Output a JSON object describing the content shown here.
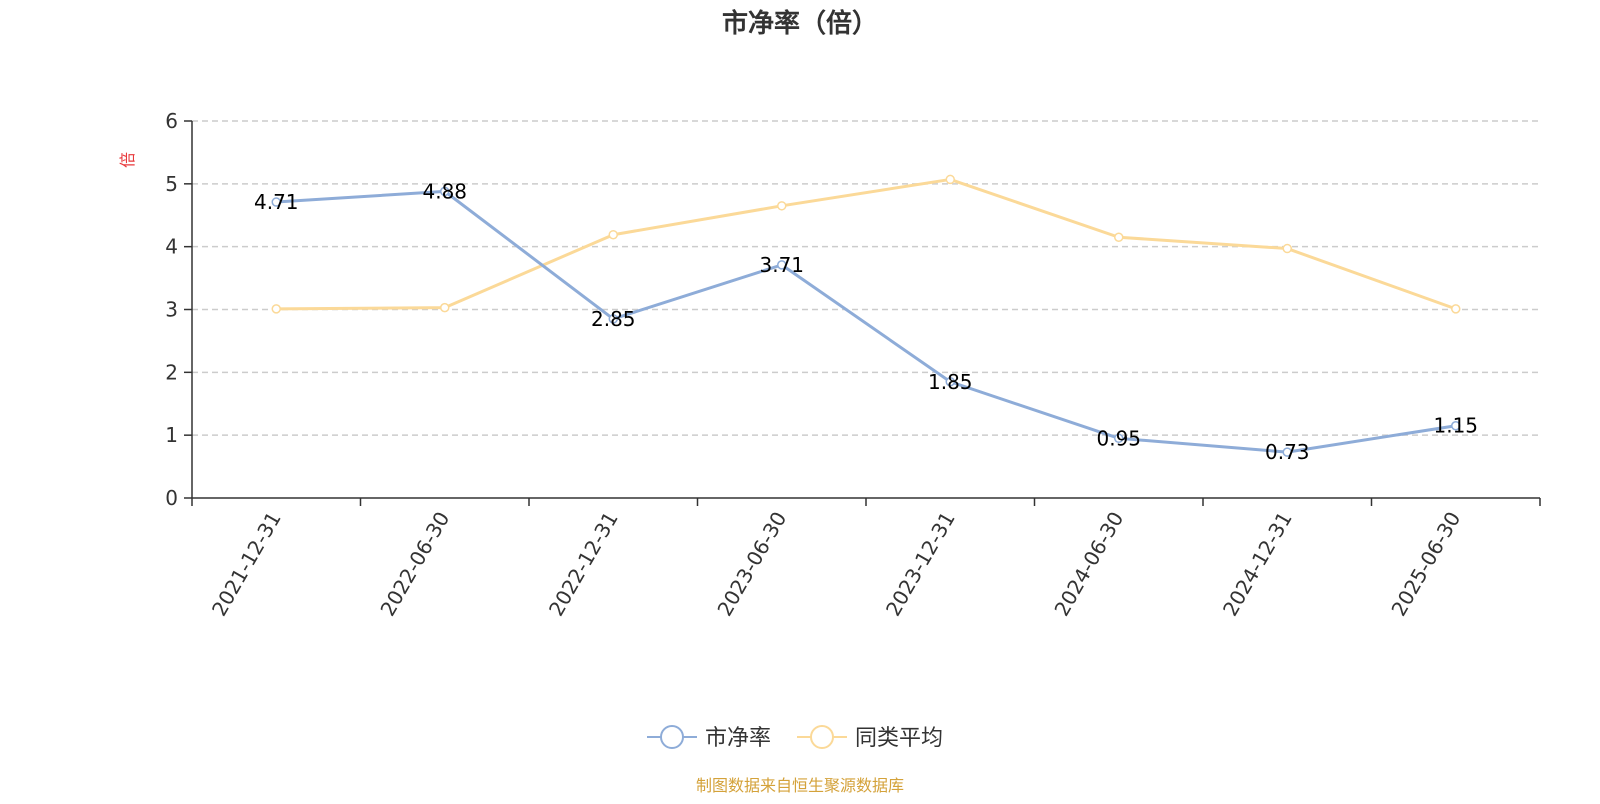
{
  "chart_data": {
    "type": "line",
    "title": "市净率（倍）",
    "ylabel": "倍",
    "xlabel": "",
    "ylim": [
      0,
      6
    ],
    "yticks": [
      0,
      1,
      2,
      3,
      4,
      5,
      6
    ],
    "grid": true,
    "legend_position": "bottom-center",
    "categories": [
      "2021-12-31",
      "2022-06-30",
      "2022-12-31",
      "2023-06-30",
      "2023-12-31",
      "2024-06-30",
      "2024-12-31",
      "2025-06-30"
    ],
    "series": [
      {
        "name": "市净率",
        "values": [
          4.71,
          4.88,
          2.85,
          3.71,
          1.85,
          0.95,
          0.73,
          1.15
        ],
        "labels": [
          "4.71",
          "4.88",
          "2.85",
          "3.71",
          "1.85",
          "0.95",
          "0.73",
          "1.15"
        ],
        "color": "#8eacd8",
        "show_labels": true
      },
      {
        "name": "同类平均",
        "values": [
          3.01,
          3.03,
          4.19,
          4.65,
          5.07,
          4.15,
          3.97,
          3.01
        ],
        "color": "#fbd998",
        "show_labels": false
      }
    ],
    "source": "制图数据来自恒生聚源数据库"
  },
  "colors": {
    "axis": "#333333",
    "grid": "#cccccc",
    "unit": "#e8393c",
    "source": "#d4a23a"
  }
}
